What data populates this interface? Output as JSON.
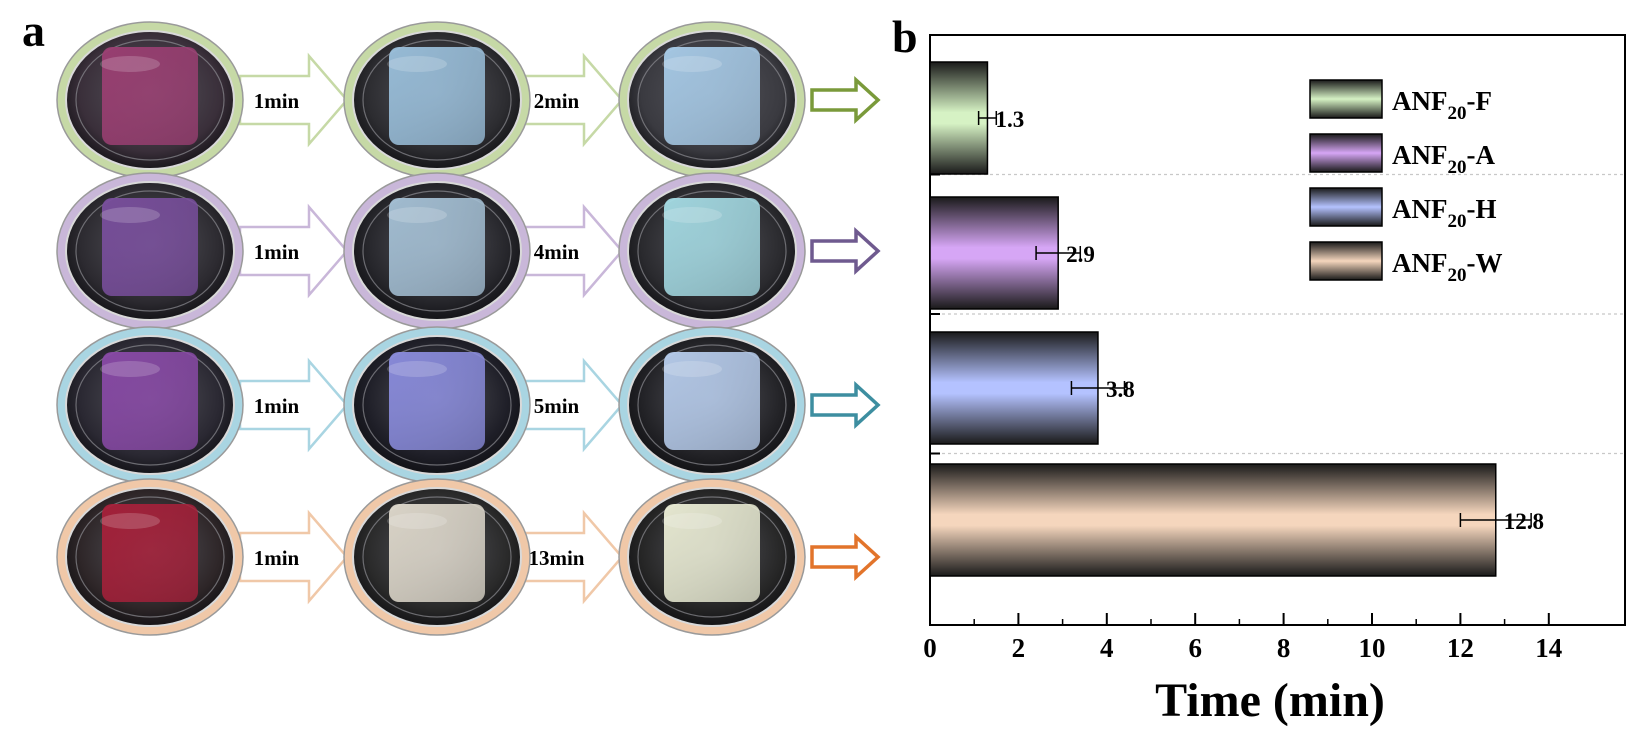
{
  "panel_a": {
    "label": "a",
    "rows": [
      {
        "step1": "1min",
        "step2": "2min",
        "color": "#c6d9a6",
        "arrow_color": "#7a9a3a",
        "dishes": [
          {
            "sample": "#9c3f73",
            "rim": "#3a2f3a"
          },
          {
            "sample": "#9cc2de",
            "rim": "#2c2c30"
          },
          {
            "sample": "#a9cdea",
            "rim": "#3a3a40"
          }
        ]
      },
      {
        "step1": "1min",
        "step2": "4min",
        "color": "#c9b7d9",
        "arrow_color": "#6f5a8f",
        "dishes": [
          {
            "sample": "#7a4f9e",
            "rim": "#2c2a30"
          },
          {
            "sample": "#a7c3d8",
            "rim": "#26262b"
          },
          {
            "sample": "#a6dde6",
            "rim": "#2a2a2e"
          }
        ]
      },
      {
        "step1": "1min",
        "step2": "5min",
        "color": "#a9d5e2",
        "arrow_color": "#3d8ea0",
        "dishes": [
          {
            "sample": "#8a4aa8",
            "rim": "#2a2832"
          },
          {
            "sample": "#8c8ee0",
            "rim": "#1f1f28"
          },
          {
            "sample": "#b9cfef",
            "rim": "#222226"
          }
        ]
      },
      {
        "step1": "1min",
        "step2": "13min",
        "color": "#f0c8a8",
        "arrow_color": "#e2742b",
        "dishes": [
          {
            "sample": "#a8203a",
            "rim": "#2e2628"
          },
          {
            "sample": "#e2dccf",
            "rim": "#2a2a2a"
          },
          {
            "sample": "#eef0d8",
            "rim": "#262626"
          }
        ]
      }
    ]
  },
  "chart_data": {
    "panel_label": "b",
    "type": "bar",
    "orientation": "horizontal",
    "categories": [
      "ANF20-F",
      "ANF20-A",
      "ANF20-H",
      "ANF20-W"
    ],
    "values": [
      1.3,
      2.9,
      3.8,
      12.8
    ],
    "errors": [
      0.2,
      0.5,
      0.6,
      0.8
    ],
    "value_labels": [
      "1.3",
      "2.9",
      "3.8",
      "12.8"
    ],
    "xlabel": "Time (min)",
    "xlim": [
      0,
      15
    ],
    "xticks": [
      0,
      2,
      4,
      6,
      8,
      10,
      12,
      14
    ],
    "colors": [
      "#d6f2c4",
      "#d6a6f5",
      "#b4c2ff",
      "#f5d6bd"
    ],
    "grid": "horizontal dashed separators",
    "legend": {
      "placement": "top-right",
      "entries": [
        {
          "main": "ANF",
          "sub": "20",
          "suffix": "-F"
        },
        {
          "main": "ANF",
          "sub": "20",
          "suffix": "-A"
        },
        {
          "main": "ANF",
          "sub": "20",
          "suffix": "-H"
        },
        {
          "main": "ANF",
          "sub": "20",
          "suffix": "-W"
        }
      ]
    }
  }
}
